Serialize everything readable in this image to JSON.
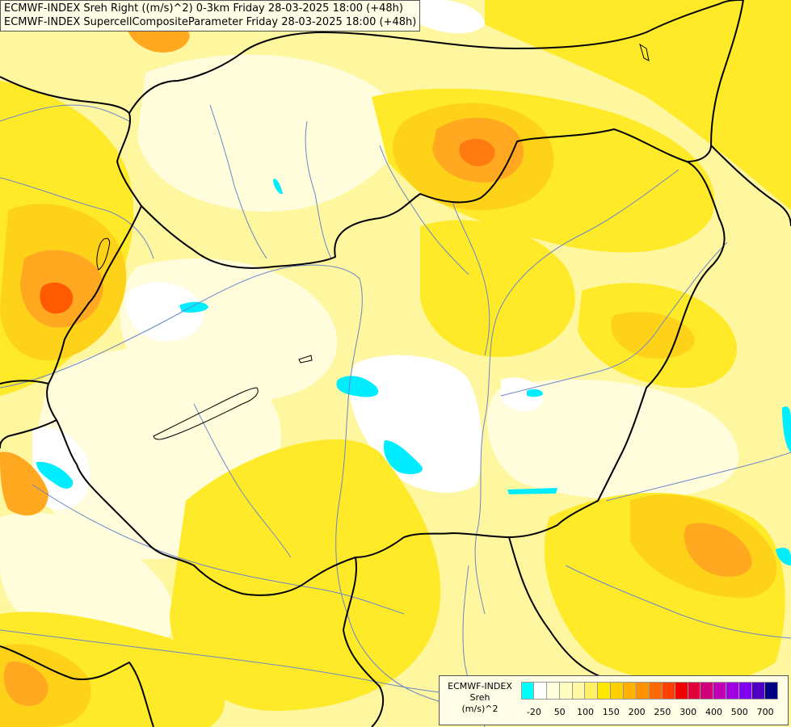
{
  "titles": {
    "line1": "ECMWF-INDEX Sreh Right ((m/s)^2) 0-3km Friday 28-03-2025 18:00 (+48h)",
    "line2": "ECMWF-INDEX SupercellCompositeParameter Friday 28-03-2025 18:00 (+48h)"
  },
  "legend": {
    "source": "ECMWF-INDEX",
    "variable": "Sreh",
    "unit": "(m/s)^2",
    "colors": [
      "#00ffff",
      "#ffffff",
      "#ffffe0",
      "#fffdc0",
      "#fff8a0",
      "#fff066",
      "#ffe800",
      "#ffd000",
      "#ffb000",
      "#ff9000",
      "#ff6a00",
      "#ff4000",
      "#f00000",
      "#e0003c",
      "#d0007a",
      "#c000b4",
      "#a000e0",
      "#8000f0",
      "#5000c0",
      "#000080"
    ],
    "ticks": [
      "-20",
      "50",
      "100",
      "150",
      "200",
      "250",
      "300",
      "400",
      "500",
      "700"
    ]
  },
  "map": {
    "field_colors": {
      "background": "#fff6a0",
      "pale": "#fffddc",
      "white": "#ffffff",
      "yellow": "#ffea2a",
      "gold": "#ffd21a",
      "orange": "#ffa820",
      "dark_orange": "#ff7a10",
      "red_orange": "#ff5a00",
      "cyan": "#00ecff"
    },
    "border_color": "#000000",
    "river_color": "#6a86c8"
  }
}
